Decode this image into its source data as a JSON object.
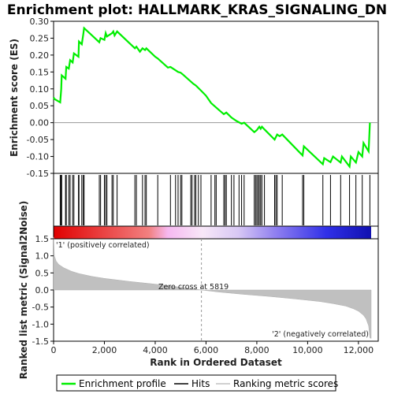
{
  "chart_data": {
    "type": "line",
    "title": "Enrichment plot: HALLMARK_KRAS_SIGNALING_DN",
    "n_genes": 12500,
    "xlabel": "Rank in Ordered Dataset",
    "x_ticks": [
      0,
      2000,
      4000,
      6000,
      8000,
      10000,
      12000
    ],
    "x_tick_labels": [
      "0",
      "2,000",
      "4,000",
      "6,000",
      "8,000",
      "10,000",
      "12,000"
    ],
    "es_panel": {
      "ylabel": "Enrichment score (ES)",
      "ylim": [
        -0.15,
        0.3
      ],
      "y_ticks": [
        -0.15,
        -0.1,
        -0.05,
        0.0,
        0.05,
        0.1,
        0.15,
        0.2,
        0.25,
        0.3
      ],
      "y_tick_labels": [
        "-0.15",
        "-0.10",
        "-0.05",
        "0.00",
        "0.05",
        "0.10",
        "0.15",
        "0.20",
        "0.25",
        "0.30"
      ],
      "series": [
        {
          "name": "Enrichment profile",
          "color": "#00ee00",
          "x": [
            0,
            30,
            260,
            300,
            320,
            470,
            500,
            600,
            650,
            750,
            800,
            980,
            1000,
            1110,
            1170,
            1200,
            1800,
            1850,
            2000,
            2050,
            2100,
            2300,
            2350,
            2400,
            2500,
            3200,
            3260,
            3400,
            3500,
            3600,
            3650,
            4000,
            4100,
            4500,
            4600,
            4800,
            4900,
            5000,
            5100,
            5500,
            5600,
            5800,
            6000,
            6200,
            6400,
            6700,
            6800,
            7000,
            7200,
            7400,
            7500,
            7900,
            8000,
            8100,
            8150,
            8200,
            8300,
            8700,
            8800,
            8900,
            9000,
            9800,
            9850,
            10600,
            10650,
            10900,
            11000,
            11300,
            11350,
            11650,
            11700,
            11900,
            12000,
            12150,
            12200,
            12400,
            12450
          ],
          "y": [
            0.075,
            0.07,
            0.06,
            0.1,
            0.14,
            0.13,
            0.165,
            0.16,
            0.185,
            0.178,
            0.205,
            0.195,
            0.24,
            0.232,
            0.262,
            0.28,
            0.238,
            0.25,
            0.245,
            0.265,
            0.255,
            0.265,
            0.27,
            0.258,
            0.27,
            0.22,
            0.225,
            0.21,
            0.22,
            0.215,
            0.22,
            0.195,
            0.19,
            0.163,
            0.165,
            0.155,
            0.15,
            0.148,
            0.142,
            0.115,
            0.11,
            0.095,
            0.08,
            0.058,
            0.045,
            0.025,
            0.03,
            0.015,
            0.005,
            -0.003,
            0.0,
            -0.028,
            -0.022,
            -0.012,
            -0.018,
            -0.012,
            -0.02,
            -0.05,
            -0.035,
            -0.04,
            -0.035,
            -0.097,
            -0.07,
            -0.123,
            -0.105,
            -0.117,
            -0.1,
            -0.118,
            -0.1,
            -0.13,
            -0.1,
            -0.118,
            -0.087,
            -0.1,
            -0.06,
            -0.085,
            0.0
          ]
        }
      ]
    },
    "hits": {
      "name": "Hits",
      "x": [
        260,
        290,
        320,
        470,
        500,
        600,
        650,
        750,
        800,
        980,
        1000,
        1110,
        1170,
        1200,
        1800,
        1850,
        2000,
        2050,
        2100,
        2300,
        2350,
        2500,
        3200,
        3260,
        3500,
        3600,
        3650,
        4100,
        4600,
        4800,
        4900,
        5000,
        5050,
        5400,
        5450,
        5550,
        5600,
        5700,
        5800,
        6200,
        6350,
        6400,
        6700,
        6750,
        6800,
        7000,
        7100,
        7300,
        7400,
        7500,
        7900,
        7950,
        8000,
        8050,
        8100,
        8150,
        8200,
        8300,
        8700,
        8750,
        8800,
        9000,
        9800,
        9850,
        10600,
        10900,
        11300,
        11650,
        11900,
        12150,
        12450
      ]
    },
    "metric_panel": {
      "ylabel": "Ranked list metric (Signal2Noise)",
      "ylim": [
        -1.5,
        1.5
      ],
      "y_ticks": [
        -1.5,
        -1.0,
        -0.5,
        0.0,
        0.5,
        1.0,
        1.5
      ],
      "y_tick_labels": [
        "-1.5",
        "-1.0",
        "-0.5",
        "0.0",
        "0.5",
        "1.0",
        "1.5"
      ],
      "series": [
        {
          "name": "Ranking metric scores",
          "color": "#c0c0c0",
          "x": [
            0,
            30,
            100,
            200,
            400,
            700,
            1000,
            1500,
            2000,
            3000,
            4000,
            5000,
            5819,
            6500,
            7500,
            8500,
            9500,
            10500,
            11000,
            11500,
            11800,
            12000,
            12200,
            12300,
            12400,
            12450,
            12500
          ],
          "y": [
            1.55,
            1.0,
            0.85,
            0.75,
            0.65,
            0.55,
            0.48,
            0.4,
            0.34,
            0.25,
            0.17,
            0.08,
            0.0,
            -0.06,
            -0.13,
            -0.19,
            -0.26,
            -0.34,
            -0.4,
            -0.47,
            -0.55,
            -0.62,
            -0.74,
            -0.85,
            -1.05,
            -1.4,
            -1.42
          ]
        }
      ],
      "zero_cross_x": 5819,
      "zero_cross_label": "Zero cross at 5819",
      "pos_label": "'1' (positively correlated)",
      "neg_label": "'2' (negatively correlated)",
      "pos_color": "#dd0000",
      "neg_color": "#0000dd"
    },
    "legend": [
      {
        "label": "Enrichment profile",
        "color": "#00ee00"
      },
      {
        "label": "Hits",
        "color": "#000000"
      },
      {
        "label": "Ranking metric scores",
        "color": "#c0c0c0"
      }
    ]
  }
}
